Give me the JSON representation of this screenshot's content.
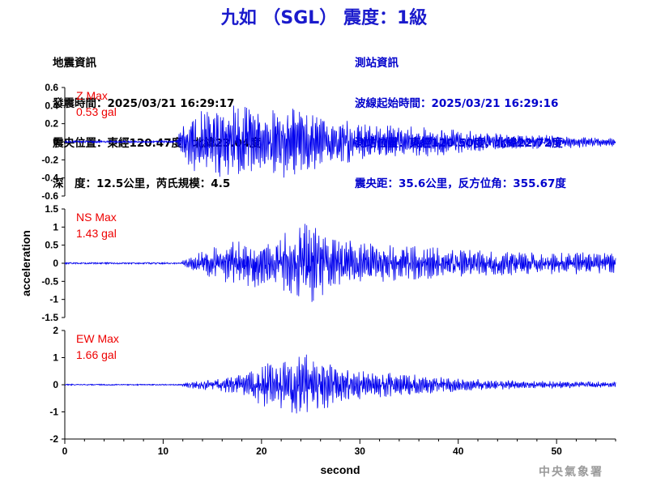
{
  "title": "九如 （SGL） 震度：1級",
  "event_info": {
    "heading": "地震資訊",
    "origin_time": "發震時間：2025/03/21 16:29:17",
    "epicenter": "震央位置：東經120.47度，北緯23.04度",
    "depth_magnitude": "深　度：12.5公里，芮氏規模：4.5"
  },
  "station_info": {
    "heading": "測站資訊",
    "wave_start": "波線起始時間：2025/03/21 16:29:16",
    "station_location": "測站位置：東經120.50度，北緯22.72度",
    "distance_azimuth": "震央距：35.6公里，反方位角：355.67度"
  },
  "footer": "中央氣象署",
  "colors": {
    "title": "#1a1acc",
    "station_info": "#0000cc",
    "trace": "#0000ee",
    "max_label": "#ee0000"
  },
  "chart_data": {
    "type": "line",
    "xlabel": "second",
    "ylabel": "acceleration",
    "xlim": [
      0,
      56
    ],
    "xticks": [
      0,
      10,
      20,
      30,
      40,
      50
    ],
    "panels": [
      {
        "name": "Z",
        "max_label": "Z Max",
        "max_value": "0.53 gal",
        "ylim": [
          -0.6,
          0.6
        ],
        "yticks": [
          -0.6,
          -0.4,
          -0.2,
          0,
          0.2,
          0.4,
          0.6
        ],
        "ytick_labels": [
          "-0.6",
          "-0.4",
          "-0.2",
          "0",
          "0.2",
          "0.4",
          "0.6"
        ],
        "noise": 0.01,
        "envelope": [
          [
            0,
            0.01
          ],
          [
            11.3,
            0.01
          ],
          [
            11.6,
            0.12
          ],
          [
            13,
            0.3
          ],
          [
            15,
            0.38
          ],
          [
            17,
            0.36
          ],
          [
            18.5,
            0.4
          ],
          [
            20,
            0.34
          ],
          [
            23,
            0.4
          ],
          [
            25,
            0.3
          ],
          [
            27,
            0.26
          ],
          [
            30,
            0.2
          ],
          [
            34,
            0.16
          ],
          [
            38,
            0.15
          ],
          [
            40,
            0.12
          ],
          [
            45,
            0.08
          ],
          [
            50,
            0.07
          ],
          [
            56,
            0.05
          ]
        ]
      },
      {
        "name": "NS",
        "max_label": "NS Max",
        "max_value": "1.43 gal",
        "ylim": [
          -1.5,
          1.5
        ],
        "yticks": [
          -1.5,
          -1,
          -0.5,
          0,
          0.5,
          1,
          1.5
        ],
        "ytick_labels": [
          "-1.5",
          "-1",
          "-0.5",
          "0",
          "0.5",
          "1",
          "1.5"
        ],
        "noise": 0.02,
        "envelope": [
          [
            0,
            0.02
          ],
          [
            11.8,
            0.02
          ],
          [
            12.2,
            0.12
          ],
          [
            14,
            0.3
          ],
          [
            16,
            0.5
          ],
          [
            18,
            0.6
          ],
          [
            20,
            0.75
          ],
          [
            21,
            0.6
          ],
          [
            23,
            0.9
          ],
          [
            25,
            1.1
          ],
          [
            27,
            0.7
          ],
          [
            30,
            0.55
          ],
          [
            34,
            0.45
          ],
          [
            38,
            0.4
          ],
          [
            42,
            0.35
          ],
          [
            46,
            0.3
          ],
          [
            50,
            0.28
          ],
          [
            56,
            0.28
          ]
        ]
      },
      {
        "name": "EW",
        "max_label": "EW Max",
        "max_value": "1.66 gal",
        "ylim": [
          -2,
          2
        ],
        "yticks": [
          -2,
          -1,
          0,
          1,
          2
        ],
        "ytick_labels": [
          "-2",
          "-1",
          "0",
          "1",
          "2"
        ],
        "noise": 0.02,
        "envelope": [
          [
            0,
            0.02
          ],
          [
            11.8,
            0.02
          ],
          [
            12.5,
            0.12
          ],
          [
            15,
            0.2
          ],
          [
            18,
            0.35
          ],
          [
            20,
            0.7
          ],
          [
            22,
            0.9
          ],
          [
            24,
            1.1
          ],
          [
            26,
            0.9
          ],
          [
            28,
            0.7
          ],
          [
            30,
            0.5
          ],
          [
            34,
            0.4
          ],
          [
            38,
            0.3
          ],
          [
            42,
            0.2
          ],
          [
            46,
            0.15
          ],
          [
            50,
            0.12
          ],
          [
            56,
            0.1
          ]
        ]
      }
    ]
  }
}
